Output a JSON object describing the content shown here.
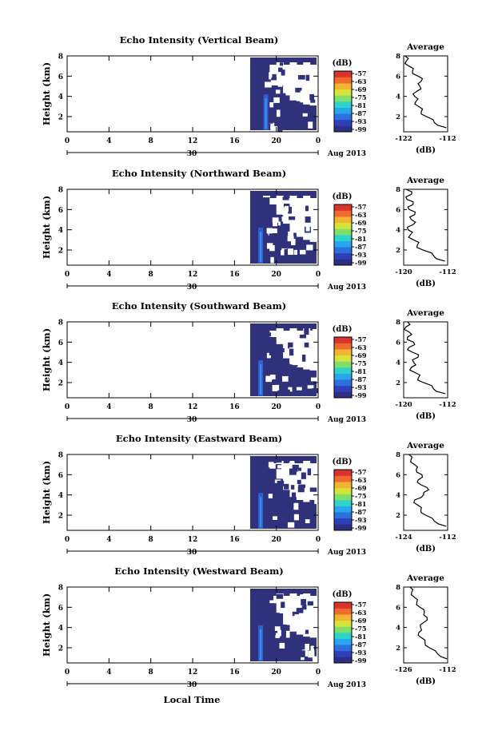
{
  "figure": {
    "xlabel": "Local Time",
    "colorbar_unit": "(dB)",
    "colorbar_ticks": [
      "-57",
      "-63",
      "-69",
      "-75",
      "-81",
      "-87",
      "-93",
      "-99"
    ],
    "colorbar_colors": [
      "#2b2f86",
      "#2f3fb8",
      "#2e6fe0",
      "#27a6ee",
      "#2ed3c9",
      "#7ee06a",
      "#d6e43a",
      "#f4b433",
      "#ef6a2e",
      "#d9342b"
    ],
    "echo_color": "#2f327a",
    "echo_bright_color": "#3a8ee6",
    "date_label": "Aug 2013",
    "date_tick": "30"
  },
  "chart_data": [
    {
      "type": "heatmap",
      "title": "Echo Intensity (Vertical Beam)",
      "ylabel": "Height (km)",
      "xlabel": "Local Time",
      "x_ticks": [
        "0",
        "4",
        "8",
        "12",
        "16",
        "20",
        "0"
      ],
      "y_ticks": [
        "2",
        "4",
        "6",
        "8"
      ],
      "x_range": [
        0,
        24
      ],
      "y_range": [
        0.5,
        8
      ],
      "z_unit": "dB",
      "z_range": [
        -99,
        -57
      ],
      "echo_start_hour": 17.5,
      "bright_column_hour": 19,
      "gap_top_km": [
        7.6,
        6.2,
        5.1,
        4.1,
        3.6,
        3.4,
        3.2,
        3.1
      ],
      "average_profile": {
        "title": "Average",
        "xlabel": "(dB)",
        "x_ticks": [
          "-122",
          "-112"
        ],
        "x_range": [
          -122,
          -112
        ],
        "y_ticks": [
          "2",
          "4",
          "6",
          "8"
        ],
        "y_range": [
          0.5,
          8
        ],
        "height_km": [
          0.9,
          1.4,
          2.0,
          2.5,
          3.0,
          3.5,
          4.0,
          4.5,
          5.0,
          5.5,
          6.0,
          6.5,
          7.0,
          7.5,
          8.0
        ],
        "value_db": [
          -112.3,
          -115.0,
          -116.8,
          -118.0,
          -118.6,
          -119.2,
          -119.5,
          -119.0,
          -118.3,
          -118.0,
          -118.7,
          -120.0,
          -120.8,
          -121.4,
          -121.7
        ]
      }
    },
    {
      "type": "heatmap",
      "title": "Echo Intensity (Northward Beam)",
      "ylabel": "Height (km)",
      "xlabel": "Local Time",
      "x_ticks": [
        "0",
        "4",
        "8",
        "12",
        "16",
        "20",
        "0"
      ],
      "y_ticks": [
        "2",
        "4",
        "6",
        "8"
      ],
      "x_range": [
        0,
        24
      ],
      "y_range": [
        0.5,
        8
      ],
      "z_unit": "dB",
      "z_range": [
        -99,
        -57
      ],
      "echo_start_hour": 17.5,
      "bright_column_hour": 18.5,
      "gap_top_km": [
        7.2,
        6.5,
        5.5,
        4.6,
        3.7,
        3.3,
        3.0,
        2.8
      ],
      "average_profile": {
        "title": "Average",
        "xlabel": "(dB)",
        "x_ticks": [
          "-120",
          "-112"
        ],
        "x_range": [
          -120,
          -112
        ],
        "y_ticks": [
          "2",
          "4",
          "6",
          "8"
        ],
        "y_range": [
          0.5,
          8
        ],
        "height_km": [
          0.9,
          1.4,
          2.0,
          2.5,
          3.0,
          3.5,
          4.0,
          4.5,
          5.0,
          5.5,
          6.0,
          6.5,
          7.0,
          7.5,
          8.0
        ],
        "value_db": [
          -112.5,
          -114.5,
          -116.5,
          -117.5,
          -118.2,
          -118.8,
          -119.2,
          -118.3,
          -118.6,
          -118.0,
          -119.0,
          -118.3,
          -119.4,
          -118.6,
          -119.6
        ]
      }
    },
    {
      "type": "heatmap",
      "title": "Echo Intensity (Southward Beam)",
      "ylabel": "Height (km)",
      "xlabel": "Local Time",
      "x_ticks": [
        "0",
        "4",
        "8",
        "12",
        "16",
        "20",
        "0"
      ],
      "y_ticks": [
        "2",
        "4",
        "6",
        "8"
      ],
      "x_range": [
        0,
        24
      ],
      "y_range": [
        0.5,
        8
      ],
      "z_unit": "dB",
      "z_range": [
        -99,
        -57
      ],
      "echo_start_hour": 17.5,
      "bright_column_hour": 18.5,
      "gap_top_km": [
        7.6,
        6.5,
        5.8,
        4.4,
        3.8,
        3.5,
        3.3,
        3.2
      ],
      "average_profile": {
        "title": "Average",
        "xlabel": "(dB)",
        "x_ticks": [
          "-120",
          "-112"
        ],
        "x_range": [
          -120,
          -112
        ],
        "y_ticks": [
          "2",
          "4",
          "6",
          "8"
        ],
        "y_range": [
          0.5,
          8
        ],
        "height_km": [
          0.9,
          1.4,
          2.0,
          2.5,
          3.0,
          3.5,
          4.0,
          4.5,
          5.0,
          5.5,
          6.0,
          6.5,
          7.0,
          7.5,
          8.0
        ],
        "value_db": [
          -112.4,
          -114.6,
          -116.4,
          -117.3,
          -118.0,
          -118.6,
          -118.2,
          -117.4,
          -118.4,
          -119.0,
          -118.2,
          -119.3,
          -119.0,
          -119.6,
          -119.3
        ]
      }
    },
    {
      "type": "heatmap",
      "title": "Echo Intensity (Eastward Beam)",
      "ylabel": "Height (km)",
      "xlabel": "Local Time",
      "x_ticks": [
        "0",
        "4",
        "8",
        "12",
        "16",
        "20",
        "0"
      ],
      "y_ticks": [
        "2",
        "4",
        "6",
        "8"
      ],
      "x_range": [
        0,
        24
      ],
      "y_range": [
        0.5,
        8
      ],
      "z_unit": "dB",
      "z_range": [
        -99,
        -57
      ],
      "echo_start_hour": 17.5,
      "bright_column_hour": 18.5,
      "gap_top_km": [
        7.4,
        6.6,
        5.6,
        4.5,
        3.8,
        3.5,
        3.3,
        3.1
      ],
      "average_profile": {
        "title": "Average",
        "xlabel": "(dB)",
        "x_ticks": [
          "-124",
          "-112"
        ],
        "x_range": [
          -124,
          -112
        ],
        "y_ticks": [
          "2",
          "4",
          "6",
          "8"
        ],
        "y_range": [
          0.5,
          8
        ],
        "height_km": [
          0.9,
          1.4,
          2.0,
          2.5,
          3.0,
          3.5,
          4.0,
          4.5,
          5.0,
          5.5,
          6.0,
          6.5,
          7.0,
          7.5,
          8.0
        ],
        "value_db": [
          -112.4,
          -115.6,
          -118.0,
          -119.3,
          -120.2,
          -121.0,
          -118.6,
          -117.2,
          -119.3,
          -120.0,
          -119.0,
          -120.6,
          -121.0,
          -122.0,
          -122.6
        ]
      }
    },
    {
      "type": "heatmap",
      "title": "Echo Intensity (Westward Beam)",
      "ylabel": "Height (km)",
      "xlabel": "Local Time",
      "x_ticks": [
        "0",
        "4",
        "8",
        "12",
        "16",
        "20",
        "0"
      ],
      "y_ticks": [
        "2",
        "4",
        "6",
        "8"
      ],
      "x_range": [
        0,
        24
      ],
      "y_range": [
        0.5,
        8
      ],
      "z_unit": "dB",
      "z_range": [
        -99,
        -57
      ],
      "echo_start_hour": 17.5,
      "bright_column_hour": 18.5,
      "gap_top_km": [
        7.5,
        6.4,
        5.4,
        4.3,
        3.6,
        3.3,
        3.1,
        3.0
      ],
      "average_profile": {
        "title": "Average",
        "xlabel": "(dB)",
        "x_ticks": [
          "-126",
          "-112"
        ],
        "x_range": [
          -126,
          -112
        ],
        "y_ticks": [
          "2",
          "4",
          "6",
          "8"
        ],
        "y_range": [
          0.5,
          8
        ],
        "height_km": [
          0.9,
          1.4,
          2.0,
          2.5,
          3.0,
          3.5,
          4.0,
          4.5,
          5.0,
          5.5,
          6.0,
          6.5,
          7.0,
          7.5,
          8.0
        ],
        "value_db": [
          -112.2,
          -115.2,
          -117.8,
          -119.2,
          -120.4,
          -121.2,
          -120.6,
          -119.6,
          -118.6,
          -119.4,
          -120.8,
          -121.8,
          -122.6,
          -123.4,
          -124.0
        ]
      }
    }
  ]
}
